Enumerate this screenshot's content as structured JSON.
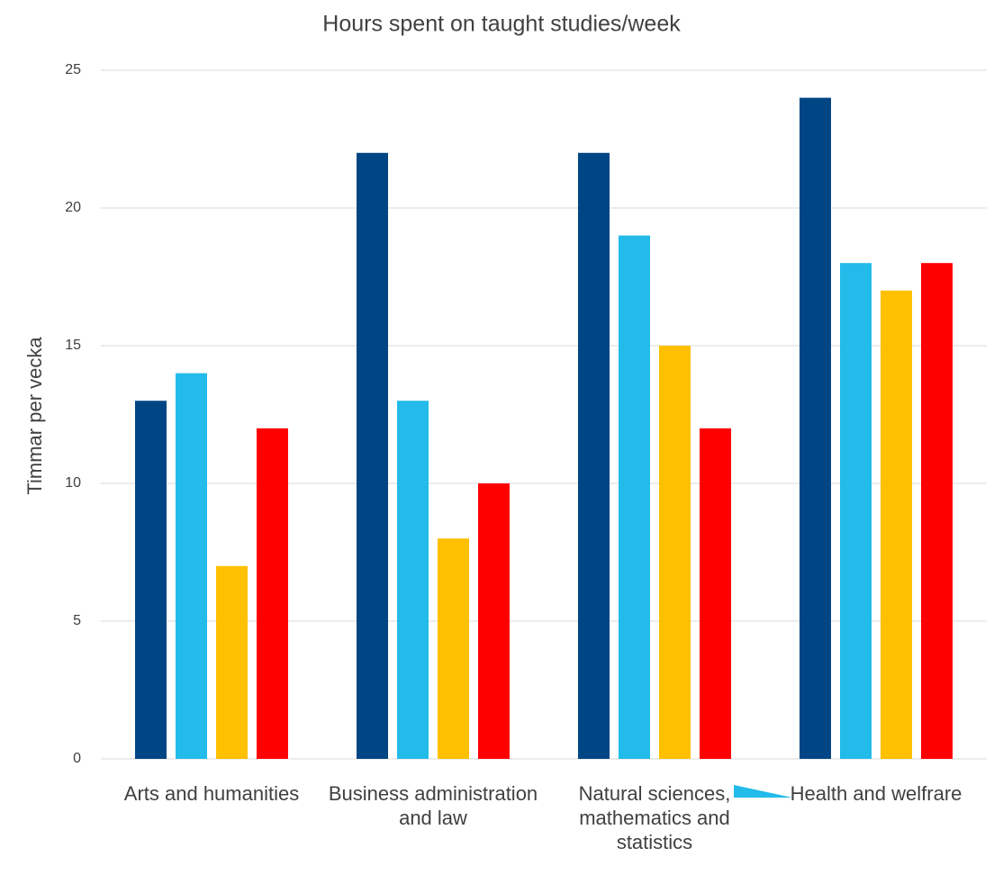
{
  "chart_data": {
    "type": "bar",
    "title": "Hours spent on taught studies/week",
    "y_label": "Timmar per vecka",
    "categories": [
      "Arts and humanities",
      "Business administration and law",
      "Natural sciences, mathematics and statistics",
      "Health and welfrare"
    ],
    "series": [
      {
        "color": "#004684",
        "values": [
          13,
          22,
          22,
          24
        ]
      },
      {
        "color": "#22bbea",
        "values": [
          14,
          13,
          19,
          18
        ]
      },
      {
        "color": "#ffc000",
        "values": [
          7,
          8,
          15,
          17
        ]
      },
      {
        "color": "#ff0000",
        "values": [
          12,
          10,
          12,
          18
        ]
      }
    ],
    "ylim": [
      0,
      25
    ],
    "yticks": [
      0,
      5,
      10,
      15,
      20,
      25
    ],
    "grid": true
  }
}
